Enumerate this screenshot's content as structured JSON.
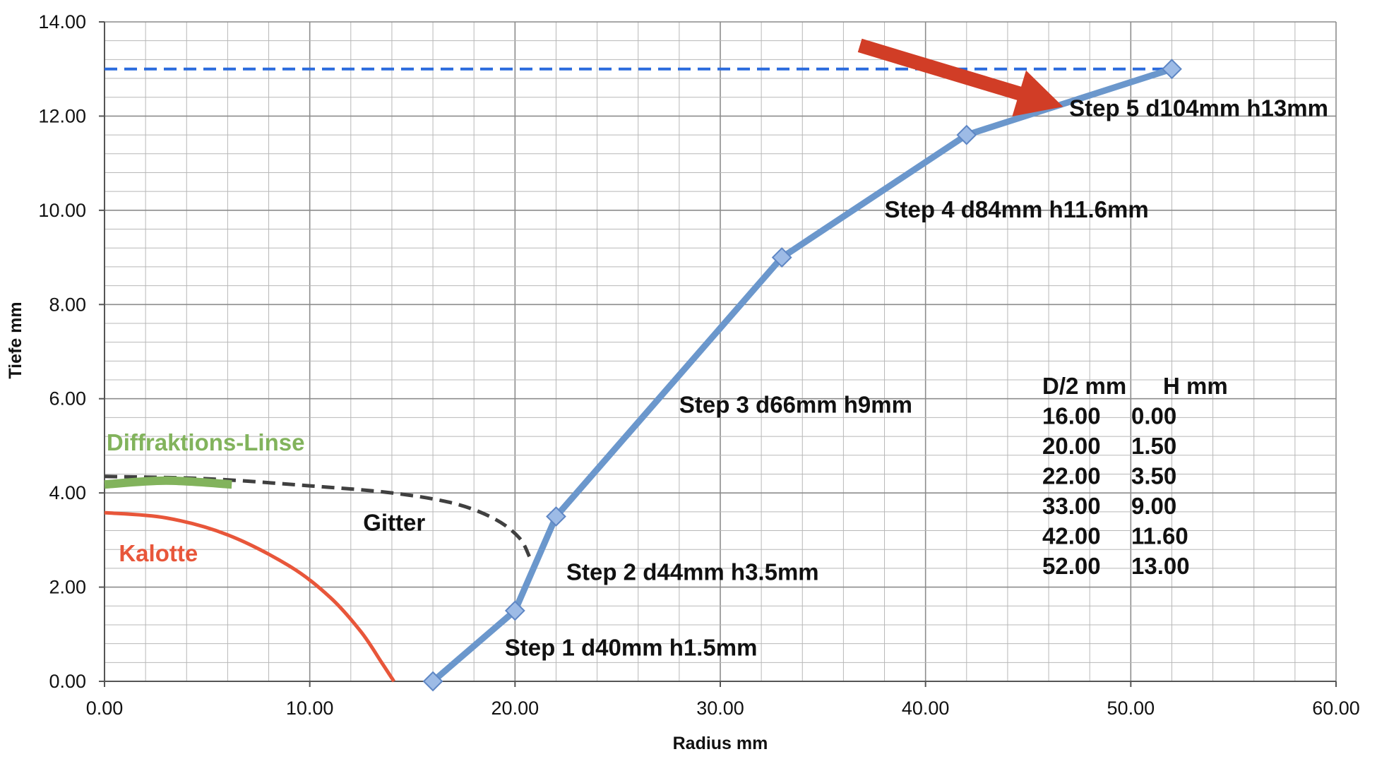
{
  "chart_data": {
    "type": "line",
    "xlabel": "Radius mm",
    "ylabel": "Tiefe mm",
    "xlim": [
      0,
      60
    ],
    "ylim": [
      0,
      14
    ],
    "x_ticks": [
      "0.00",
      "10.00",
      "20.00",
      "30.00",
      "40.00",
      "50.00",
      "60.00"
    ],
    "y_ticks": [
      "0.00",
      "2.00",
      "4.00",
      "6.00",
      "8.00",
      "10.00",
      "12.00",
      "14.00"
    ],
    "grid": true,
    "minor_grid": true,
    "series": [
      {
        "color": "#6b97cc",
        "marker": "diamond",
        "points": [
          {
            "x": 16.0,
            "y": 0.0
          },
          {
            "x": 20.0,
            "y": 1.5
          },
          {
            "x": 22.0,
            "y": 3.5
          },
          {
            "x": 33.0,
            "y": 9.0
          },
          {
            "x": 42.0,
            "y": 11.6
          },
          {
            "x": 52.0,
            "y": 13.0
          }
        ]
      }
    ],
    "step_labels": [
      {
        "text": "Step 1 d40mm h1.5mm",
        "x": 19.5,
        "y": 0.55
      },
      {
        "text": "Step 2 d44mm h3.5mm",
        "x": 22.5,
        "y": 2.15
      },
      {
        "text": "Step 3 d66mm h9mm",
        "x": 28.0,
        "y": 5.7
      },
      {
        "text": "Step 4 d84mm h11.6mm",
        "x": 38.0,
        "y": 9.85
      },
      {
        "text": "Step 5 d104mm h13mm",
        "x": 47.0,
        "y": 12.0
      }
    ],
    "reference_line": {
      "y": 13.0,
      "color": "#2b6bdd",
      "style": "dashed"
    },
    "curves": [
      {
        "label": "Kalotte",
        "color": "#e8563a",
        "style": "solid",
        "label_at": {
          "x": 0.7,
          "y": 2.55
        },
        "points": [
          [
            0.0,
            3.58
          ],
          [
            3.0,
            3.47
          ],
          [
            6.0,
            3.11
          ],
          [
            9.0,
            2.45
          ],
          [
            11.0,
            1.78
          ],
          [
            12.5,
            1.05
          ],
          [
            13.5,
            0.4
          ],
          [
            14.1,
            0.0
          ]
        ]
      },
      {
        "label": "Gitter",
        "color": "#404040",
        "style": "dashed",
        "label_at": {
          "x": 12.6,
          "y": 3.2
        },
        "points": [
          [
            0.0,
            4.35
          ],
          [
            5.0,
            4.3
          ],
          [
            10.0,
            4.15
          ],
          [
            14.0,
            4.0
          ],
          [
            17.0,
            3.78
          ],
          [
            19.0,
            3.45
          ],
          [
            20.2,
            3.05
          ],
          [
            20.7,
            2.65
          ]
        ]
      },
      {
        "label": "Diffraktions-Linse",
        "color": "#82b35c",
        "style": "thick",
        "label_at": {
          "x": 0.1,
          "y": 4.9
        },
        "points": [
          [
            0.0,
            4.18
          ],
          [
            3.0,
            4.26
          ],
          [
            6.2,
            4.18
          ]
        ]
      }
    ],
    "arrow": {
      "color": "#d13d26",
      "from": {
        "x": 36.8,
        "y": 13.5
      },
      "to": {
        "x": 46.7,
        "y": 12.2
      }
    },
    "table": {
      "headers": [
        "D/2 mm",
        "H mm"
      ],
      "rows": [
        [
          "16.00",
          "0.00"
        ],
        [
          "20.00",
          "1.50"
        ],
        [
          "22.00",
          "3.50"
        ],
        [
          "33.00",
          "9.00"
        ],
        [
          "42.00",
          "11.60"
        ],
        [
          "52.00",
          "13.00"
        ]
      ]
    }
  }
}
